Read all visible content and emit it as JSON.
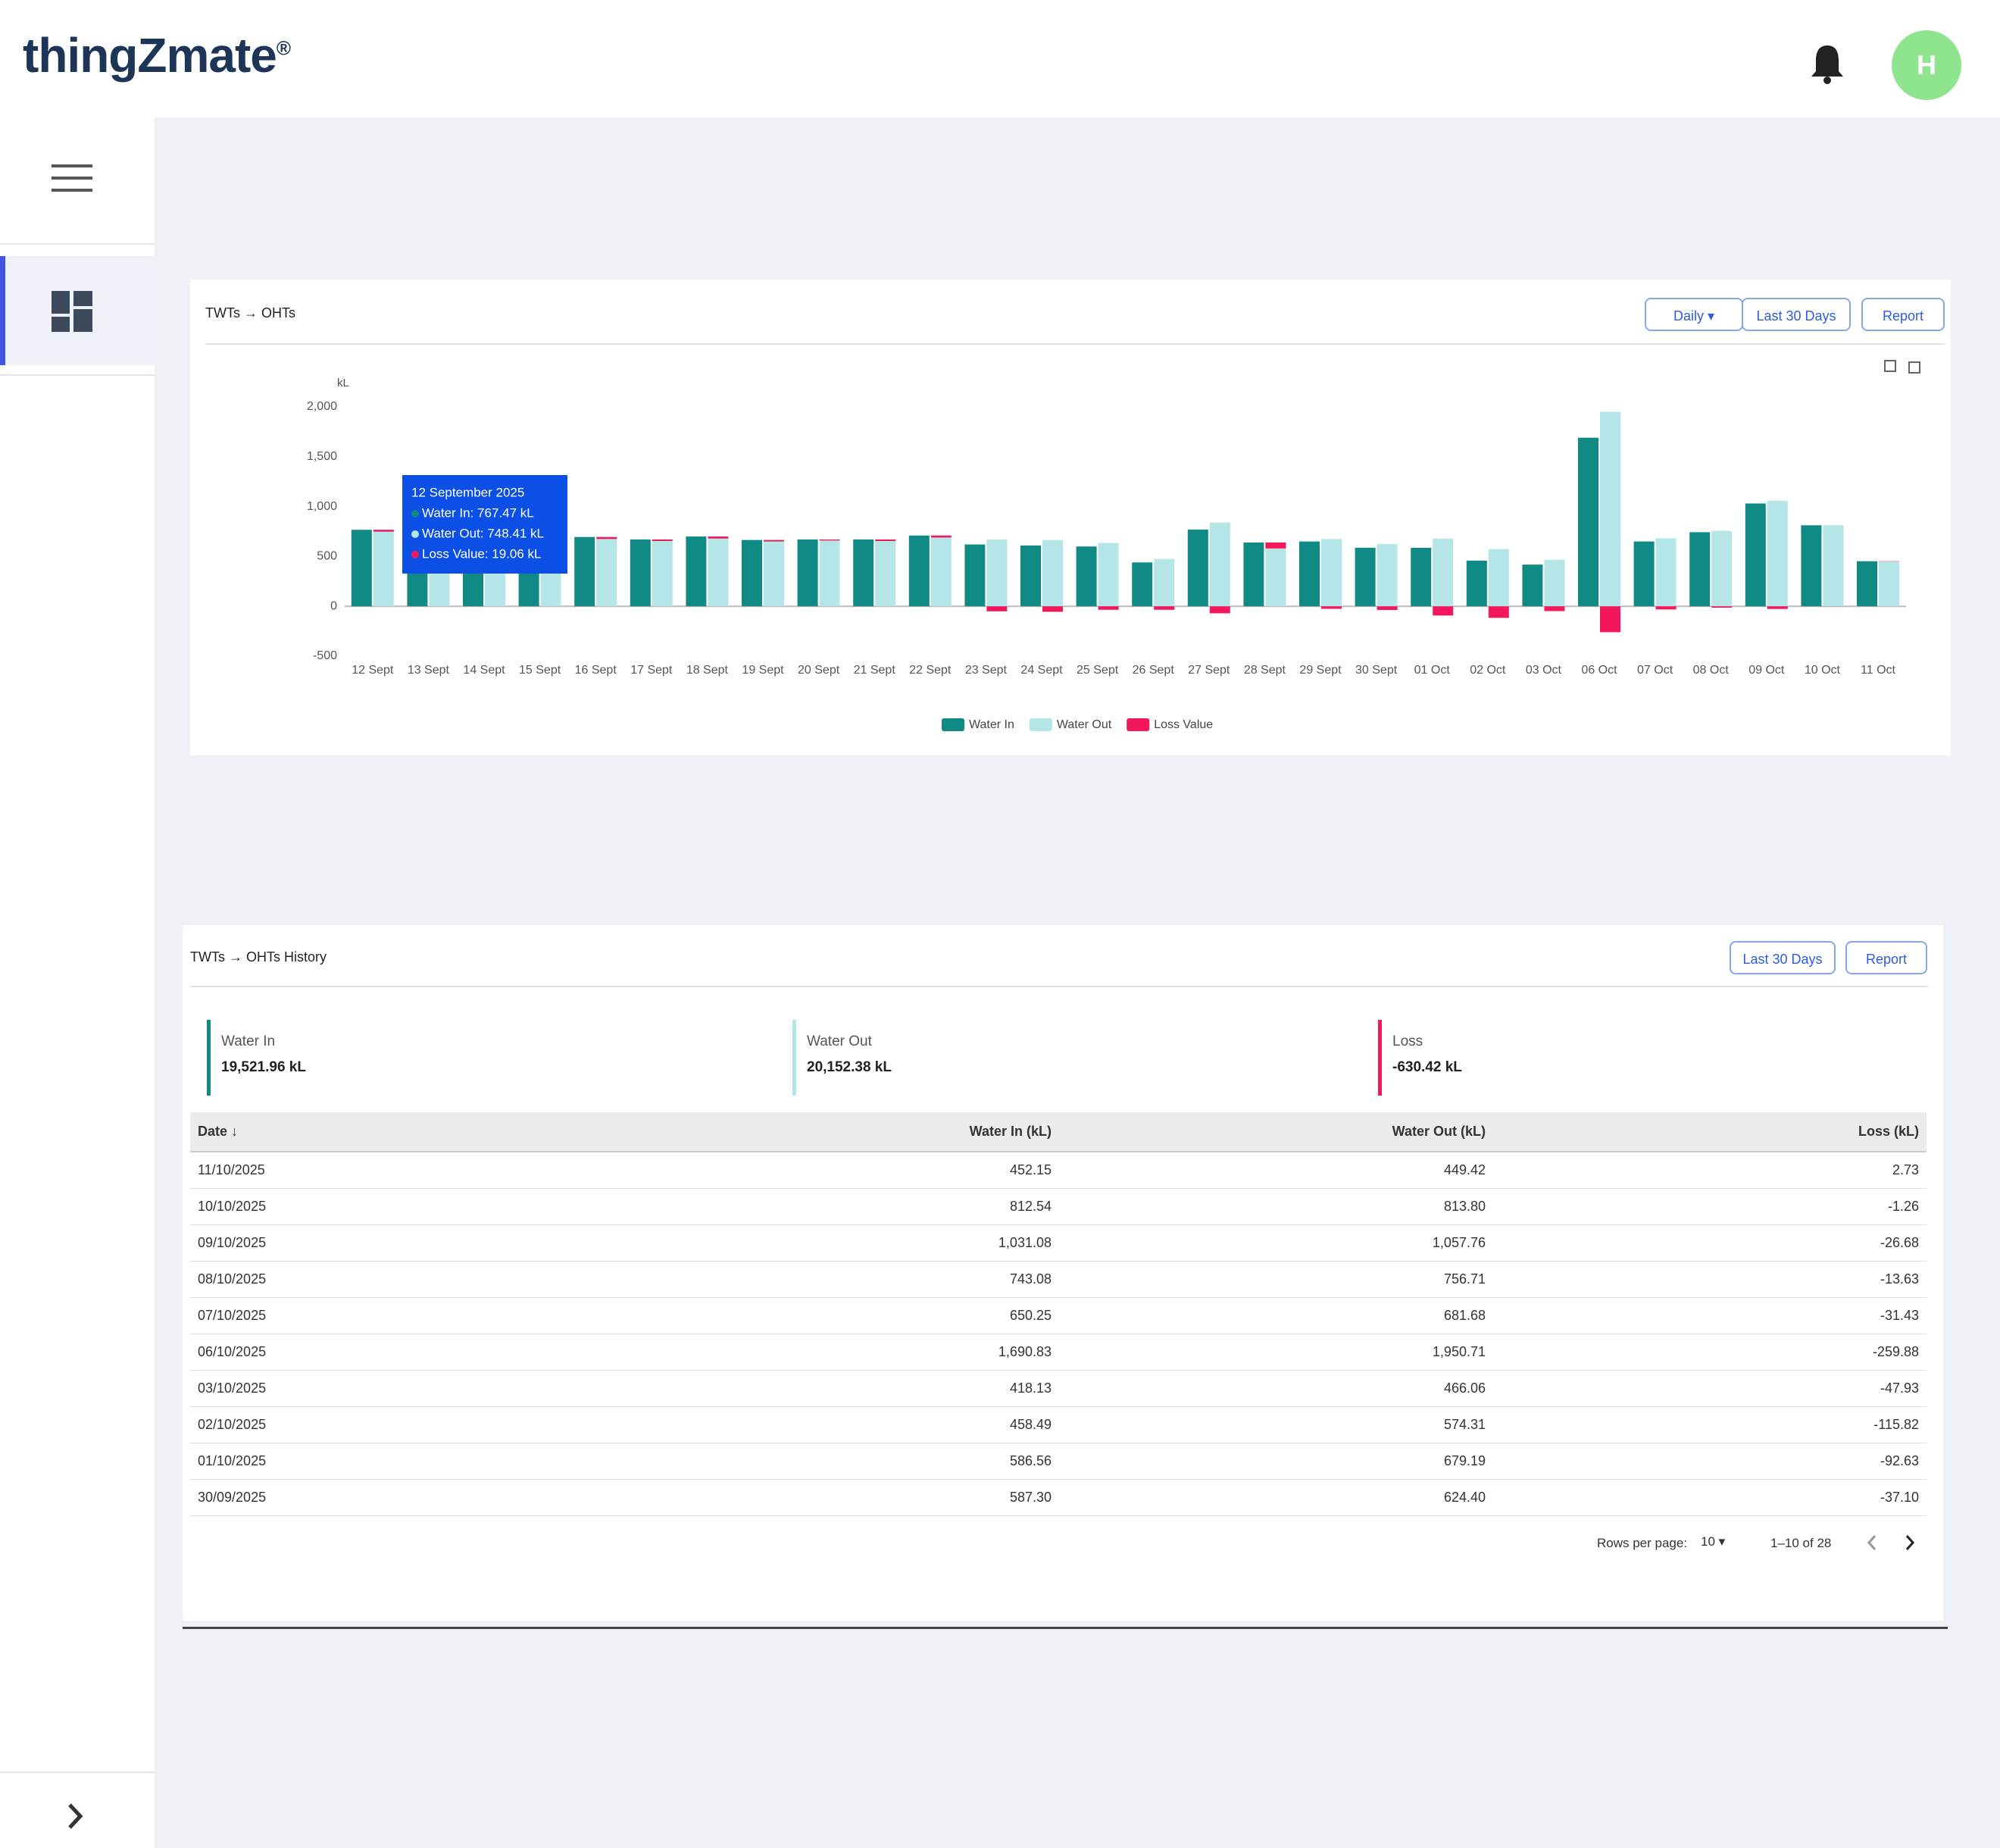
{
  "header": {
    "brand": "thingZmate",
    "brand_mark": "®",
    "avatar": "H"
  },
  "chart_card": {
    "title": "TWTs → OHTs",
    "buttons": [
      "Daily",
      "Last 30 Days",
      "Report"
    ]
  },
  "chart_data": {
    "type": "bar",
    "y_label": "kL",
    "categories": [
      "12 Sept",
      "13 Sept",
      "14 Sept",
      "15 Sept",
      "16 Sept",
      "17 Sept",
      "18 Sept",
      "19 Sept",
      "20 Sept",
      "21 Sept",
      "22 Sept",
      "23 Sept",
      "24 Sept",
      "25 Sept",
      "26 Sept",
      "27 Sept",
      "28 Sept",
      "29 Sept",
      "30 Sept",
      "01 Oct",
      "02 Oct",
      "03 Oct",
      "06 Oct",
      "07 Oct",
      "08 Oct",
      "09 Oct",
      "10 Oct",
      "11 Oct"
    ],
    "series": [
      {
        "name": "Water In",
        "color": "#108a84",
        "values": [
          767.47,
          745,
          750,
          755,
          695,
          670,
          700,
          665,
          670,
          670,
          710,
          620,
          610,
          600,
          440,
          770,
          640,
          650,
          587.3,
          586.56,
          458.49,
          418.13,
          1690.83,
          650.25,
          743.08,
          1031.08,
          812.54,
          452.15
        ]
      },
      {
        "name": "Water Out",
        "color": "#b4e6e7",
        "values": [
          748.41,
          725,
          730,
          735,
          675,
          655,
          680,
          650,
          660,
          655,
          690,
          670,
          665,
          635,
          475,
          840,
          580,
          675,
          624.4,
          679.19,
          574.31,
          466.06,
          1950.71,
          681.68,
          756.71,
          1057.76,
          813.8,
          449.42
        ]
      },
      {
        "name": "Loss Value",
        "color": "#f3175b",
        "stack": "Water Out",
        "values": [
          19.06,
          20,
          20,
          20,
          20,
          15,
          20,
          15,
          10,
          15,
          20,
          -50,
          -55,
          -35,
          -35,
          -70,
          60,
          -25,
          -37.1,
          -92.63,
          -115.82,
          -47.93,
          -259.88,
          -31.43,
          -13.63,
          -26.68,
          -1.26,
          2.73
        ]
      }
    ],
    "ylim": [
      -500,
      2000
    ],
    "yticks": [
      {
        "value": 2000,
        "label": "2,000"
      },
      {
        "value": 1500,
        "label": "1,500"
      },
      {
        "value": 1000,
        "label": "1,000"
      },
      500,
      0,
      -500
    ],
    "grid": false,
    "legend": "bottom",
    "tooltip": {
      "title": "12 September 2025",
      "lines": [
        "Water In: 767.47 kL",
        "Water Out: 748.41 kL",
        "Loss Value: 19.06 kL"
      ]
    }
  },
  "history": {
    "title": "TWTs → OHTs History",
    "buttons": [
      "Last 30 Days",
      "Report"
    ],
    "summary": [
      {
        "label": "Water In",
        "value": "19,521.96 kL"
      },
      {
        "label": "Water Out",
        "value": "20,152.38 kL"
      },
      {
        "label": "Loss",
        "value": "-630.42 kL"
      }
    ],
    "table": {
      "columns": [
        "Date",
        "Water In (kL)",
        "Water Out (kL)",
        "Loss (kL)"
      ],
      "rows": [
        [
          "11/10/2025",
          "452.15",
          "449.42",
          "2.73"
        ],
        [
          "10/10/2025",
          "812.54",
          "813.80",
          "-1.26"
        ],
        [
          "09/10/2025",
          "1,031.08",
          "1,057.76",
          "-26.68"
        ],
        [
          "08/10/2025",
          "743.08",
          "756.71",
          "-13.63"
        ],
        [
          "07/10/2025",
          "650.25",
          "681.68",
          "-31.43"
        ],
        [
          "06/10/2025",
          "1,690.83",
          "1,950.71",
          "-259.88"
        ],
        [
          "03/10/2025",
          "418.13",
          "466.06",
          "-47.93"
        ],
        [
          "02/10/2025",
          "458.49",
          "574.31",
          "-115.82"
        ],
        [
          "01/10/2025",
          "586.56",
          "679.19",
          "-92.63"
        ],
        [
          "30/09/2025",
          "587.30",
          "624.40",
          "-37.10"
        ]
      ]
    },
    "pagination": {
      "rows_per_page_label": "Rows per page:",
      "rows_per_page": "10",
      "range": "1–10 of 28"
    }
  }
}
